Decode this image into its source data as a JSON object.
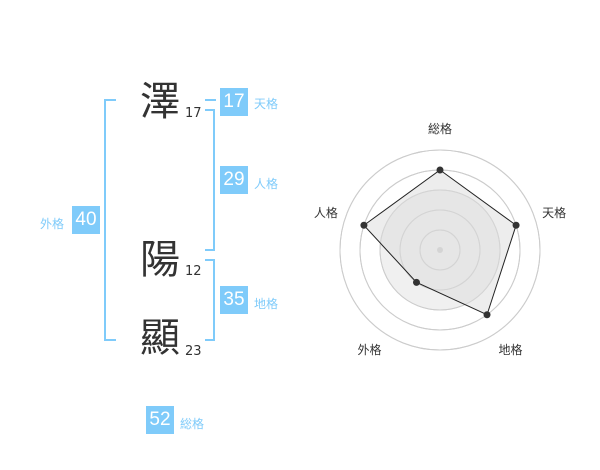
{
  "name": {
    "chars": [
      {
        "char": "澤",
        "strokes": "17"
      },
      {
        "char": "陽",
        "strokes": "12"
      },
      {
        "char": "顯",
        "strokes": "23"
      }
    ]
  },
  "fortunes": {
    "tenkaku": {
      "label": "天格",
      "value": "17"
    },
    "jinkaku": {
      "label": "人格",
      "value": "29"
    },
    "chikaku": {
      "label": "地格",
      "value": "35"
    },
    "gaikaku": {
      "label": "外格",
      "value": "40"
    },
    "soukaku": {
      "label": "総格",
      "value": "52"
    }
  },
  "accent": "#7fcbfa",
  "chart_data": {
    "type": "radar",
    "axes": [
      "総格",
      "天格",
      "地格",
      "外格",
      "人格"
    ],
    "values": [
      4,
      4,
      4,
      2,
      4
    ],
    "range": [
      0,
      5
    ],
    "rings": 5
  }
}
